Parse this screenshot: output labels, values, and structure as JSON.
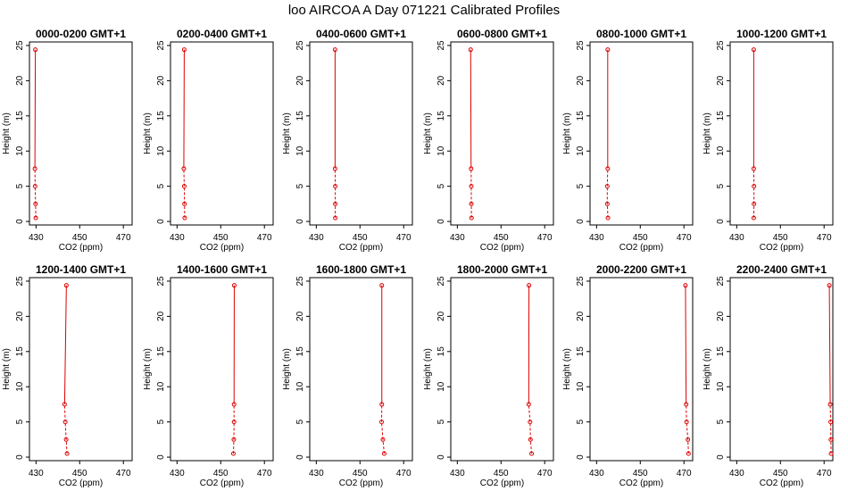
{
  "title": "loo AIRCOA A  Day 071221  Calibrated Profiles",
  "colors": {
    "profile": "#dd0000",
    "axis": "#000000",
    "background": "#ffffff"
  },
  "chart_data": {
    "type": "line",
    "xlabel": "CO2 (ppm)",
    "ylabel": "Height (m)",
    "xlim": [
      427,
      474
    ],
    "ylim": [
      -0.5,
      25.5
    ],
    "x_ticks": [
      430,
      450,
      470
    ],
    "y_ticks": [
      0,
      5,
      10,
      15,
      20,
      25
    ],
    "grid": false,
    "heights": [
      0.5,
      2.5,
      5,
      7.5,
      24.4
    ],
    "panels": [
      {
        "title": "0000-0200 GMT+1",
        "x": [
          429.9,
          429.8,
          429.6,
          429.5,
          429.7
        ]
      },
      {
        "title": "0200-0400 GMT+1",
        "x": [
          433.5,
          433.4,
          433.3,
          433.1,
          433.3
        ]
      },
      {
        "title": "0400-0600 GMT+1",
        "x": [
          438.7,
          438.7,
          438.7,
          438.6,
          438.6
        ]
      },
      {
        "title": "0600-0800 GMT+1",
        "x": [
          436.5,
          436.4,
          436.4,
          436.3,
          436.1
        ]
      },
      {
        "title": "0800-1000 GMT+1",
        "x": [
          435.2,
          434.9,
          434.9,
          435.1,
          435.1
        ]
      },
      {
        "title": "1000-1200 GMT+1",
        "x": [
          437.8,
          437.9,
          437.9,
          437.8,
          437.8
        ]
      },
      {
        "title": "1200-1400 GMT+1",
        "x": [
          444.2,
          443.8,
          443.4,
          443.1,
          443.9
        ]
      },
      {
        "title": "1400-1600 GMT+1",
        "x": [
          455.8,
          456.0,
          456.1,
          456.1,
          456.2
        ]
      },
      {
        "title": "1600-1800 GMT+1",
        "x": [
          461.1,
          460.5,
          459.9,
          460.0,
          460.0
        ]
      },
      {
        "title": "1800-2000 GMT+1",
        "x": [
          464.0,
          463.5,
          463.3,
          462.7,
          462.8
        ]
      },
      {
        "title": "2000-2200 GMT+1",
        "x": [
          472.1,
          471.8,
          471.2,
          471.0,
          470.7
        ]
      },
      {
        "title": "2200-2400 GMT+1",
        "x": [
          473.2,
          473.1,
          473.0,
          472.8,
          472.4
        ]
      }
    ]
  }
}
